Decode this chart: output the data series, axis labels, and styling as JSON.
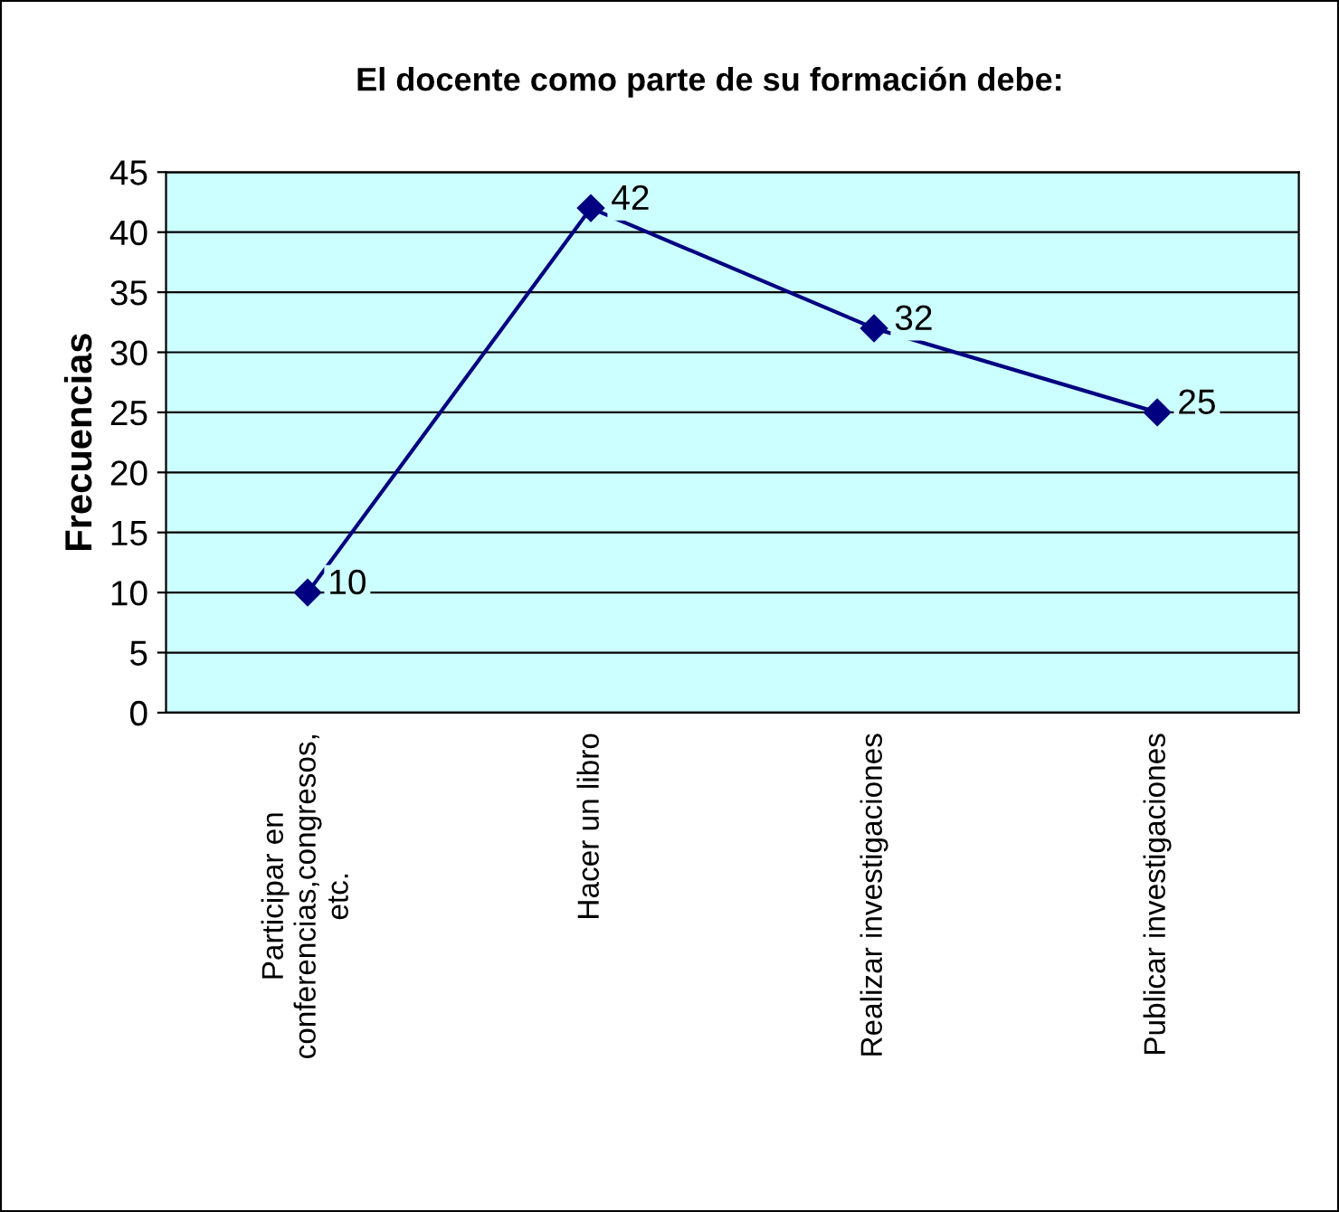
{
  "chart_data": {
    "type": "line",
    "title": "El docente como parte de su formación debe:",
    "ylabel": "Frecuencias",
    "categories": [
      "Participar en\nconferencias,congresos,\netc.",
      "Hacer un libro",
      "Realizar investigaciones",
      "Publicar investigaciones"
    ],
    "series": [
      {
        "color": "#000080",
        "values": [
          10,
          42,
          32,
          25
        ]
      }
    ],
    "ylim": [
      0,
      45
    ],
    "yticks": [
      0,
      5,
      10,
      15,
      20,
      25,
      30,
      35,
      40,
      45
    ],
    "grid": "y",
    "marker": "diamond",
    "line_style": "solid",
    "data_labels": true,
    "legend": false
  }
}
